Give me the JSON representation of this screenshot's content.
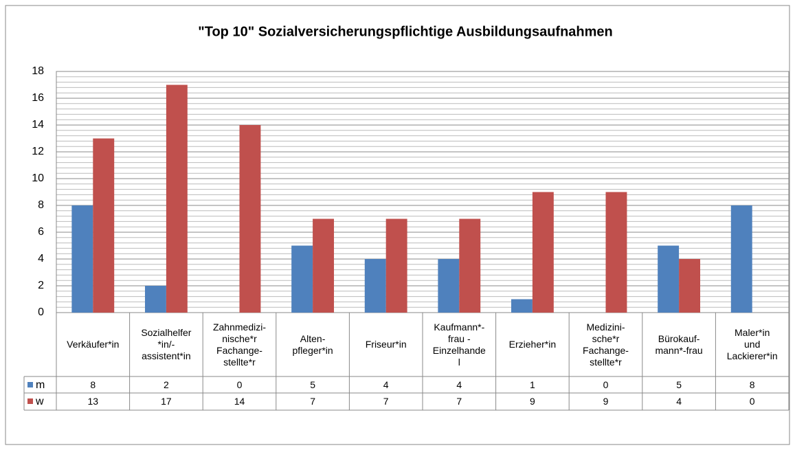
{
  "chart_data": {
    "type": "bar",
    "title": "\"Top 10\" Sozialversicherungspflichtige Ausbildungsaufnahmen",
    "categories": [
      "Verkäufer*in",
      "Sozialhelfer\n*in/-\nassistent*in",
      "Zahnmedizi-\nnische*r\nFachange-\nstellte*r",
      "Alten-\npfleger*in",
      "Friseur*in",
      "Kaufmann*-\nfrau -\nEinzelhande\nl",
      "Erzieher*in",
      "Medizini-\nsche*r\nFachange-\nstellte*r",
      "Bürokauf-\nmann*-frau",
      "Maler*in\nund\nLackierer*in"
    ],
    "series": [
      {
        "name": "m",
        "color": "#4f81bd",
        "values": [
          8,
          2,
          0,
          5,
          4,
          4,
          1,
          0,
          5,
          8
        ]
      },
      {
        "name": "w",
        "color": "#c0504d",
        "values": [
          13,
          17,
          14,
          7,
          7,
          7,
          9,
          9,
          4,
          0
        ]
      }
    ],
    "ylim": [
      0,
      18
    ],
    "yticks": [
      0,
      2,
      4,
      6,
      8,
      10,
      12,
      14,
      16,
      18
    ],
    "grid": true,
    "minor_grid": true
  }
}
